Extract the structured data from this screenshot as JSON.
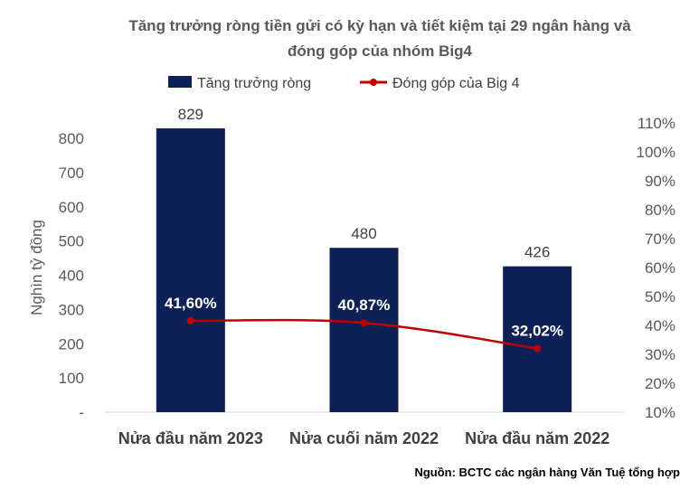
{
  "chart_data": {
    "type": "bar",
    "title_lines": [
      "Tăng trưởng ròng tiền gửi có kỳ hạn và tiết kiệm tại 29 ngân hàng và",
      "đóng góp của nhóm Big4"
    ],
    "categories": [
      "Nửa đầu năm 2023",
      "Nửa cuối năm 2022",
      "Nửa đầu năm 2022"
    ],
    "series": [
      {
        "name": "Tăng trưởng ròng",
        "kind": "bar",
        "axis": "left",
        "color": "#0d2157",
        "values": [
          829,
          480,
          426
        ],
        "labels": [
          "829",
          "480",
          "426"
        ]
      },
      {
        "name": "Đóng góp của Big 4",
        "kind": "line",
        "axis": "right",
        "color": "#c00000",
        "values": [
          41.6,
          40.87,
          32.02
        ],
        "labels": [
          "41,60%",
          "40,87%",
          "32,02%"
        ]
      }
    ],
    "ylabel": "Nghìn tỷ đồng",
    "ylim": [
      0,
      800
    ],
    "yticks": [
      "-",
      "100",
      "200",
      "300",
      "400",
      "500",
      "600",
      "700",
      "800"
    ],
    "y2lim": [
      10,
      110
    ],
    "y2ticks": [
      "10%",
      "20%",
      "30%",
      "40%",
      "50%",
      "60%",
      "70%",
      "80%",
      "90%",
      "100%",
      "110%"
    ],
    "legend_position": "top",
    "grid": false
  },
  "source": "Nguồn: BCTC các ngân hàng Văn Tuệ tổng hợp"
}
